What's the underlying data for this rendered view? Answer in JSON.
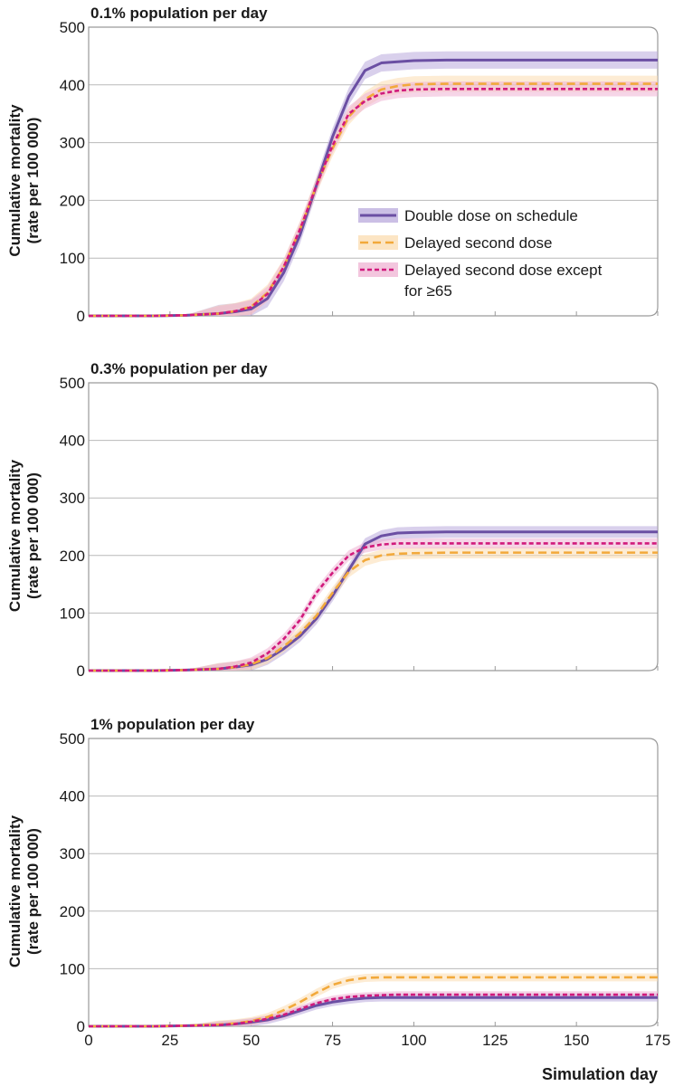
{
  "chart_data": [
    {
      "type": "line",
      "title": "0.1% population per day",
      "ylabel_line1": "Cumulative mortality",
      "ylabel_line2": "(rate per 100 000)",
      "xlim": [
        0,
        175
      ],
      "ylim": [
        0,
        500
      ],
      "x_ticks": [
        0,
        25,
        50,
        75,
        100,
        125,
        150,
        175
      ],
      "y_ticks": [
        0,
        100,
        200,
        300,
        400,
        500
      ],
      "grid": "horizontal",
      "legend_position": "right-middle",
      "x": [
        0,
        20,
        30,
        40,
        45,
        50,
        55,
        60,
        65,
        70,
        75,
        80,
        85,
        90,
        95,
        100,
        110,
        125,
        150,
        175
      ],
      "series": [
        {
          "name": "Double dose on schedule",
          "values": [
            0,
            0,
            1,
            4,
            7,
            12,
            30,
            75,
            140,
            225,
            310,
            380,
            425,
            438,
            440,
            442,
            443,
            443,
            443,
            443
          ],
          "band": 15
        },
        {
          "name": "Delayed second dose",
          "values": [
            0,
            0,
            1,
            4,
            8,
            16,
            40,
            85,
            150,
            225,
            290,
            345,
            375,
            392,
            398,
            401,
            402,
            402,
            402,
            402
          ],
          "band": 14
        },
        {
          "name": "Delayed second dose except for ≥65",
          "values": [
            0,
            0,
            1,
            4,
            8,
            15,
            38,
            85,
            150,
            225,
            295,
            350,
            372,
            385,
            390,
            392,
            393,
            393,
            393,
            393
          ],
          "band": 13
        }
      ]
    },
    {
      "type": "line",
      "title": "0.3% population per day",
      "ylabel_line1": "Cumulative mortality",
      "ylabel_line2": "(rate per 100 000)",
      "xlim": [
        0,
        175
      ],
      "ylim": [
        0,
        500
      ],
      "x_ticks": [
        0,
        25,
        50,
        75,
        100,
        125,
        150,
        175
      ],
      "y_ticks": [
        0,
        100,
        200,
        300,
        400,
        500
      ],
      "grid": "horizontal",
      "x": [
        0,
        20,
        30,
        40,
        45,
        50,
        55,
        60,
        65,
        70,
        75,
        80,
        85,
        90,
        95,
        100,
        110,
        125,
        150,
        175
      ],
      "series": [
        {
          "name": "Double dose on schedule",
          "values": [
            0,
            0,
            1,
            3,
            6,
            10,
            20,
            38,
            60,
            90,
            130,
            175,
            220,
            234,
            239,
            240,
            241,
            241,
            241,
            241
          ],
          "band": 10
        },
        {
          "name": "Delayed second dose",
          "values": [
            0,
            0,
            1,
            3,
            6,
            11,
            22,
            42,
            65,
            95,
            135,
            172,
            192,
            200,
            203,
            204,
            205,
            205,
            205,
            205
          ],
          "band": 10
        },
        {
          "name": "Delayed second dose except for ≥65",
          "values": [
            0,
            0,
            1,
            3,
            7,
            14,
            30,
            55,
            88,
            135,
            170,
            200,
            214,
            219,
            221,
            221,
            221,
            221,
            221,
            221
          ],
          "band": 9
        }
      ]
    },
    {
      "type": "line",
      "title": "1% population per day",
      "ylabel_line1": "Cumulative mortality",
      "ylabel_line2": "(rate per 100 000)",
      "xlabel": "Simulation day",
      "xlim": [
        0,
        175
      ],
      "ylim": [
        0,
        500
      ],
      "x_ticks": [
        0,
        25,
        50,
        75,
        100,
        125,
        150,
        175
      ],
      "y_ticks": [
        0,
        100,
        200,
        300,
        400,
        500
      ],
      "x_tick_labels": [
        "0",
        "25",
        "50",
        "75",
        "100",
        "125",
        "150",
        "175"
      ],
      "grid": "horizontal",
      "x": [
        0,
        20,
        30,
        40,
        45,
        50,
        55,
        60,
        65,
        70,
        75,
        80,
        85,
        90,
        95,
        100,
        110,
        125,
        150,
        175
      ],
      "series": [
        {
          "name": "Double dose on schedule",
          "values": [
            0,
            0,
            1,
            2,
            4,
            7,
            11,
            18,
            27,
            36,
            42,
            46,
            49,
            50,
            50,
            50,
            50,
            50,
            50,
            50
          ],
          "band": 7
        },
        {
          "name": "Delayed second dose",
          "values": [
            0,
            0,
            1,
            3,
            5,
            9,
            16,
            28,
            42,
            58,
            72,
            80,
            84,
            85,
            85,
            85,
            85,
            85,
            85,
            85
          ],
          "band": 7
        },
        {
          "name": "Delayed second dose except for ≥65",
          "values": [
            0,
            0,
            1,
            2,
            4,
            8,
            13,
            20,
            30,
            40,
            47,
            51,
            53,
            54,
            55,
            55,
            55,
            55,
            55,
            55
          ],
          "band": 6
        }
      ]
    }
  ],
  "series_style": [
    {
      "name": "Double dose on schedule",
      "color": "#6b4fa3",
      "band_color": "#b9a9dc",
      "dash": "",
      "width": 3
    },
    {
      "name": "Delayed second dose",
      "color": "#f2a93b",
      "band_color": "#fbdcb0",
      "dash": "9 5",
      "width": 2.6
    },
    {
      "name": "Delayed second dose except for ≥65",
      "color": "#d11a7c",
      "band_color": "#efb3d3",
      "dash": "5 3",
      "width": 2.6
    }
  ],
  "legend": {
    "items": [
      "Double dose on schedule",
      "Delayed second dose",
      "Delayed second dose except"
    ],
    "item3_line2": "for ≥65"
  }
}
